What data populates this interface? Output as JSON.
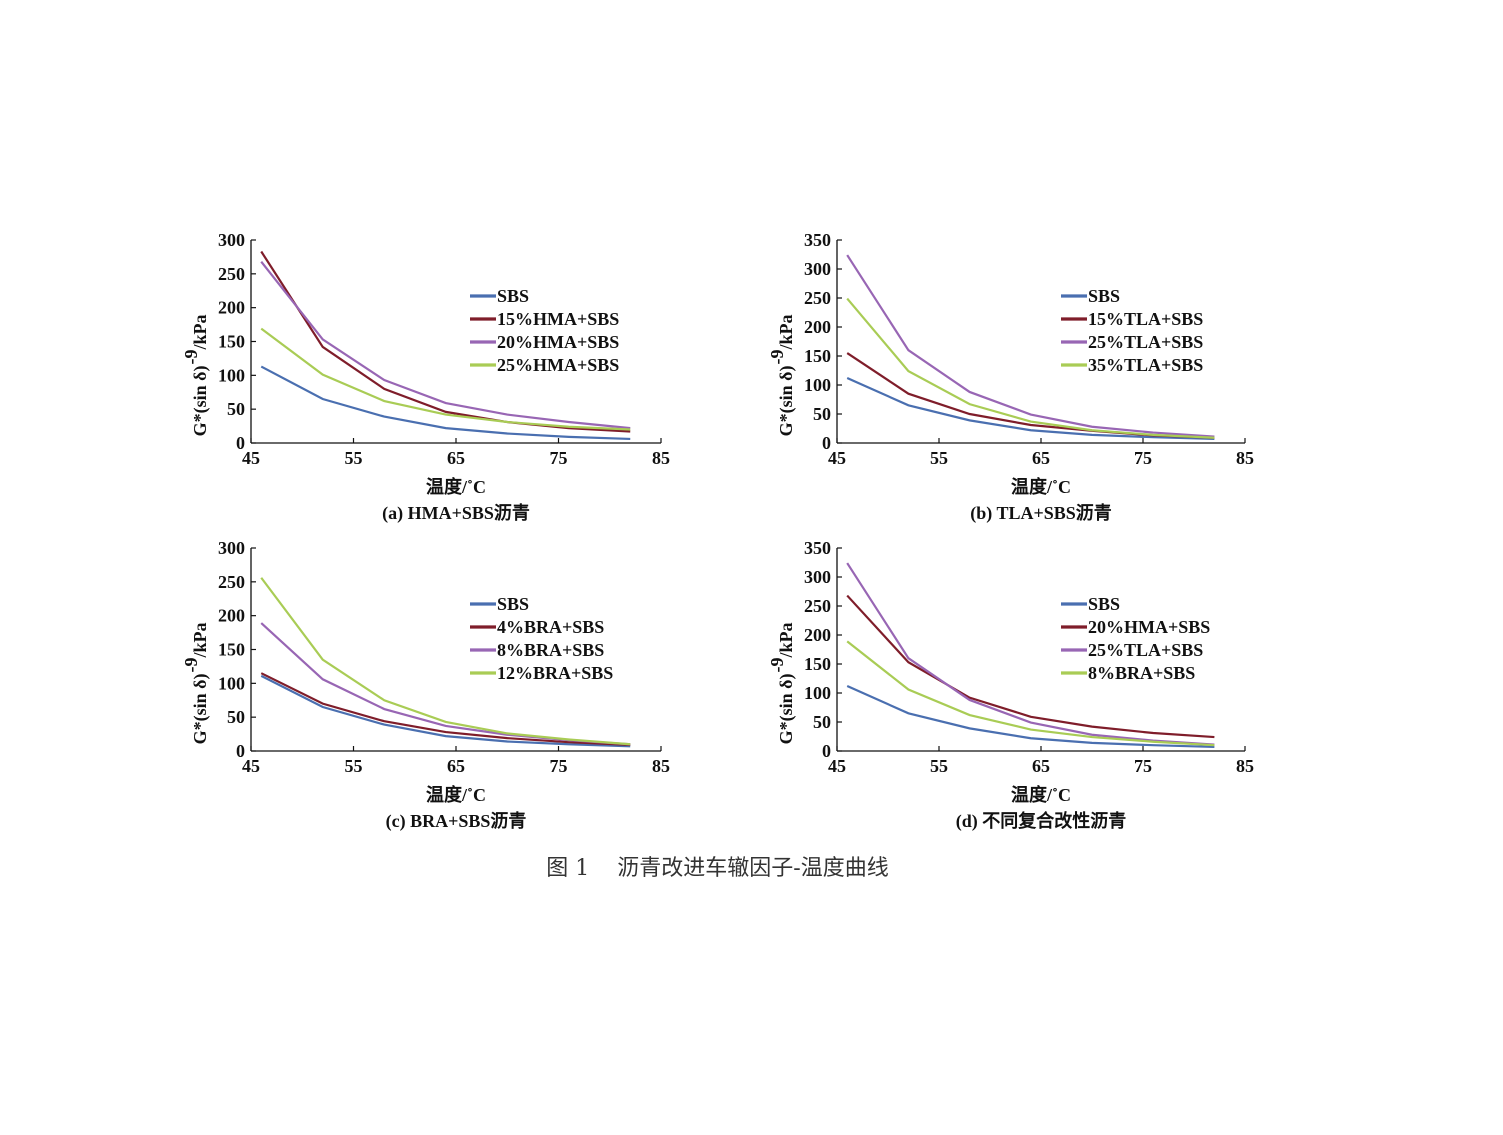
{
  "figure_caption": "图 1    沥青改进车辙因子-温度曲线",
  "colors": {
    "SBS": "#4a6fb0",
    "s2": "#7f1d2a",
    "s3": "#9866b4",
    "s4": "#a9cc55",
    "axis": "#111111"
  },
  "chart_data": [
    {
      "type": "line",
      "title": "(a) HMA+SBS沥青",
      "xlabel": "温度/˚C",
      "ylabel": "G*(sin δ)",
      "ylabel_sup": "-9",
      "ylabel_unit": " /kPa",
      "xlim": [
        45,
        85
      ],
      "ylim": [
        0,
        300
      ],
      "xticks": [
        45,
        55,
        65,
        75,
        85
      ],
      "yticks": [
        0,
        50,
        100,
        150,
        200,
        250,
        300
      ],
      "legend_position": "right-center",
      "grid": false,
      "x": [
        46,
        52,
        58,
        64,
        70,
        76,
        82
      ],
      "series": [
        {
          "name": "SBS",
          "color": "#4a6fb0",
          "values": [
            113,
            65,
            39,
            22,
            14,
            9,
            6
          ]
        },
        {
          "name": "15%HMA+SBS",
          "color": "#7f1d2a",
          "values": [
            283,
            142,
            80,
            46,
            31,
            22,
            17
          ]
        },
        {
          "name": "20%HMA+SBS",
          "color": "#9866b4",
          "values": [
            268,
            153,
            93,
            59,
            42,
            31,
            22
          ]
        },
        {
          "name": "25%HMA+SBS",
          "color": "#a9cc55",
          "values": [
            169,
            101,
            62,
            42,
            31,
            24,
            20
          ]
        }
      ]
    },
    {
      "type": "line",
      "title": "(b) TLA+SBS沥青",
      "xlabel": "温度/˚C",
      "ylabel": "G*(sin δ)",
      "ylabel_sup": "-9",
      "ylabel_unit": " /kPa",
      "xlim": [
        45,
        85
      ],
      "ylim": [
        0,
        350
      ],
      "xticks": [
        45,
        55,
        65,
        75,
        85
      ],
      "yticks": [
        0,
        50,
        100,
        150,
        200,
        250,
        300,
        350
      ],
      "legend_position": "right-center",
      "grid": false,
      "x": [
        46,
        52,
        58,
        64,
        70,
        76,
        82
      ],
      "series": [
        {
          "name": "SBS",
          "color": "#4a6fb0",
          "values": [
            112,
            65,
            39,
            22,
            14,
            10,
            7
          ]
        },
        {
          "name": "15%TLA+SBS",
          "color": "#7f1d2a",
          "values": [
            155,
            85,
            50,
            31,
            21,
            13,
            9
          ]
        },
        {
          "name": "25%TLA+SBS",
          "color": "#9866b4",
          "values": [
            324,
            160,
            88,
            49,
            28,
            18,
            11
          ]
        },
        {
          "name": "35%TLA+SBS",
          "color": "#a9cc55",
          "values": [
            249,
            124,
            67,
            37,
            22,
            14,
            9
          ]
        }
      ]
    },
    {
      "type": "line",
      "title": "(c) BRA+SBS沥青",
      "xlabel": "温度/˚C",
      "ylabel": "G*(sin δ)",
      "ylabel_sup": "-9",
      "ylabel_unit": " /kPa",
      "xlim": [
        45,
        85
      ],
      "ylim": [
        0,
        300
      ],
      "xticks": [
        45,
        55,
        65,
        75,
        85
      ],
      "yticks": [
        0,
        50,
        100,
        150,
        200,
        250,
        300
      ],
      "legend_position": "right-center",
      "grid": false,
      "x": [
        46,
        52,
        58,
        64,
        70,
        76,
        82
      ],
      "series": [
        {
          "name": "SBS",
          "color": "#4a6fb0",
          "values": [
            111,
            65,
            39,
            22,
            14,
            10,
            7
          ]
        },
        {
          "name": "4%BRA+SBS",
          "color": "#7f1d2a",
          "values": [
            115,
            70,
            44,
            28,
            19,
            13,
            9
          ]
        },
        {
          "name": "8%BRA+SBS",
          "color": "#9866b4",
          "values": [
            189,
            106,
            62,
            37,
            24,
            16,
            10
          ]
        },
        {
          "name": "12%BRA+SBS",
          "color": "#a9cc55",
          "values": [
            256,
            135,
            75,
            43,
            26,
            17,
            10
          ]
        }
      ]
    },
    {
      "type": "line",
      "title": "(d) 不同复合改性沥青",
      "xlabel": "温度/˚C",
      "ylabel": "G*(sin δ)",
      "ylabel_sup": "-9",
      "ylabel_unit": " /kPa",
      "xlim": [
        45,
        85
      ],
      "ylim": [
        0,
        350
      ],
      "xticks": [
        45,
        55,
        65,
        75,
        85
      ],
      "yticks": [
        0,
        50,
        100,
        150,
        200,
        250,
        300,
        350
      ],
      "legend_position": "right-center",
      "grid": false,
      "x": [
        46,
        52,
        58,
        64,
        70,
        76,
        82
      ],
      "series": [
        {
          "name": "SBS",
          "color": "#4a6fb0",
          "values": [
            112,
            65,
            39,
            22,
            14,
            10,
            7
          ]
        },
        {
          "name": "20%HMA+SBS",
          "color": "#7f1d2a",
          "values": [
            268,
            153,
            92,
            59,
            42,
            31,
            24
          ]
        },
        {
          "name": "25%TLA+SBS",
          "color": "#9866b4",
          "values": [
            324,
            160,
            88,
            49,
            28,
            18,
            11
          ]
        },
        {
          "name": "8%BRA+SBS",
          "color": "#a9cc55",
          "values": [
            189,
            106,
            62,
            37,
            24,
            16,
            10
          ]
        }
      ]
    }
  ]
}
